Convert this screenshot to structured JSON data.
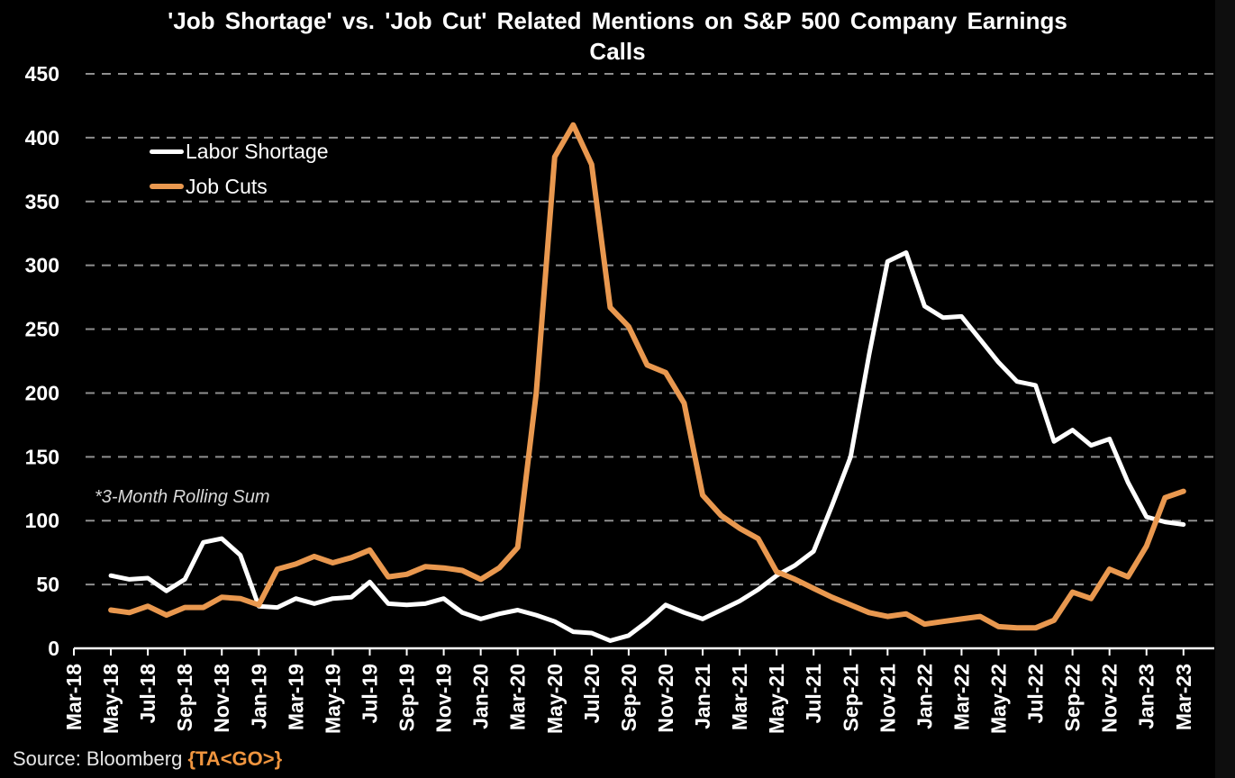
{
  "title": {
    "line1": "'Job Shortage' vs. 'Job Cut' Related Mentions on S&P 500 Company Earnings",
    "line2": "Calls"
  },
  "legend": [
    {
      "label": "Labor Shortage",
      "color": "#ffffff"
    },
    {
      "label": "Job Cuts",
      "color": "#E9984F"
    }
  ],
  "annotation": "*3-Month Rolling Sum",
  "source": {
    "prefix": "Source: Bloomberg ",
    "terminal_code": "{TA<GO>}",
    "terminal_code_color": "#F0953F"
  },
  "colors": {
    "background": "#000000",
    "grid": "#8f8f8f",
    "axis": "#ffffff",
    "labor_shortage_line": "#ffffff",
    "job_cuts_line": "#E9984F"
  },
  "chart_data": {
    "type": "line",
    "title": "'Job Shortage' vs. 'Job Cut' Related Mentions on S&P 500 Company Earnings Calls",
    "xlabel": "",
    "ylabel": "",
    "ylim": [
      0,
      450
    ],
    "yticks": [
      0,
      50,
      100,
      150,
      200,
      250,
      300,
      350,
      400,
      450
    ],
    "grid": "horizontal-dashed",
    "legend_position": "upper-left-inside",
    "note": "*3-Month Rolling Sum",
    "x_axis_tick_labels": [
      "Mar-18",
      "May-18",
      "Jul-18",
      "Sep-18",
      "Nov-18",
      "Jan-19",
      "Mar-19",
      "May-19",
      "Jul-19",
      "Sep-19",
      "Nov-19",
      "Jan-20",
      "Mar-20",
      "May-20",
      "Jul-20",
      "Sep-20",
      "Nov-20",
      "Jan-21",
      "Mar-21",
      "May-21",
      "Jul-21",
      "Sep-21",
      "Nov-21",
      "Jan-22",
      "Mar-22",
      "May-22",
      "Jul-22",
      "Sep-22",
      "Nov-22",
      "Jan-23",
      "Mar-23"
    ],
    "x": [
      "May-18",
      "Jun-18",
      "Jul-18",
      "Aug-18",
      "Sep-18",
      "Oct-18",
      "Nov-18",
      "Dec-18",
      "Jan-19",
      "Feb-19",
      "Mar-19",
      "Apr-19",
      "May-19",
      "Jun-19",
      "Jul-19",
      "Aug-19",
      "Sep-19",
      "Oct-19",
      "Nov-19",
      "Dec-19",
      "Jan-20",
      "Feb-20",
      "Mar-20",
      "Apr-20",
      "May-20",
      "Jun-20",
      "Jul-20",
      "Aug-20",
      "Sep-20",
      "Oct-20",
      "Nov-20",
      "Dec-20",
      "Jan-21",
      "Feb-21",
      "Mar-21",
      "Apr-21",
      "May-21",
      "Jun-21",
      "Jul-21",
      "Aug-21",
      "Sep-21",
      "Oct-21",
      "Nov-21",
      "Dec-21",
      "Jan-22",
      "Feb-22",
      "Mar-22",
      "Apr-22",
      "May-22",
      "Jun-22",
      "Jul-22",
      "Aug-22",
      "Sep-22",
      "Oct-22",
      "Nov-22",
      "Dec-22",
      "Jan-23",
      "Feb-23",
      "Mar-23"
    ],
    "series": [
      {
        "name": "Labor Shortage",
        "color": "#ffffff",
        "values": [
          57,
          54,
          55,
          45,
          54,
          83,
          86,
          73,
          33,
          32,
          39,
          35,
          39,
          40,
          52,
          35,
          34,
          35,
          39,
          28,
          23,
          27,
          30,
          26,
          21,
          13,
          12,
          6,
          10,
          21,
          34,
          28,
          23,
          30,
          37,
          46,
          57,
          65,
          76,
          112,
          150,
          230,
          303,
          310,
          268,
          259,
          260,
          242,
          224,
          209,
          206,
          162,
          171,
          159,
          164,
          130,
          103,
          99,
          97
        ]
      },
      {
        "name": "Job Cuts",
        "color": "#E9984F",
        "values": [
          30,
          28,
          33,
          26,
          32,
          32,
          40,
          39,
          34,
          62,
          66,
          72,
          67,
          71,
          77,
          56,
          58,
          64,
          63,
          61,
          54,
          63,
          79,
          200,
          385,
          410,
          379,
          267,
          252,
          222,
          216,
          192,
          120,
          104,
          94,
          86,
          60,
          54,
          47,
          40,
          34,
          28,
          25,
          27,
          19,
          21,
          23,
          25,
          17,
          16,
          16,
          22,
          44,
          39,
          62,
          56,
          80,
          118,
          123
        ]
      }
    ]
  }
}
